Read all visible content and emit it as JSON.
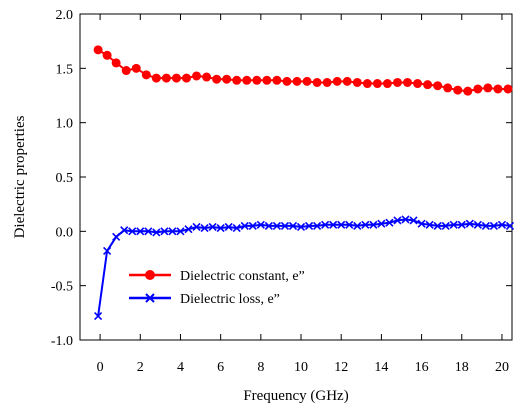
{
  "chart_data": {
    "type": "line",
    "xlabel": "Frequency (GHz)",
    "ylabel": "Dielectric properties",
    "xlim": [
      -1,
      20.5
    ],
    "ylim": [
      -1.0,
      2.0
    ],
    "x_ticks": [
      0,
      2,
      4,
      6,
      8,
      10,
      12,
      14,
      16,
      18,
      20
    ],
    "x_tick_labels": [
      "0",
      "2",
      "4",
      "6",
      "8",
      "10",
      "12",
      "14",
      "16",
      "18",
      "20"
    ],
    "y_ticks": [
      2.0,
      1.5,
      1.0,
      0.5,
      0.0,
      -0.5,
      -1.0
    ],
    "y_tick_labels": [
      "2.0",
      "1.5",
      "1.0",
      "0.5",
      "0.0",
      "-0.5",
      "-1.0"
    ],
    "grid": false,
    "legend_position": "lower-left",
    "series": [
      {
        "name": "Dielectric constant, e”",
        "color": "#ff0000",
        "marker": "circle",
        "x": [
          -0.1,
          0.35,
          0.8,
          1.3,
          1.8,
          2.3,
          2.8,
          3.3,
          3.8,
          4.3,
          4.8,
          5.3,
          5.8,
          6.3,
          6.8,
          7.3,
          7.8,
          8.3,
          8.8,
          9.3,
          9.8,
          10.3,
          10.8,
          11.3,
          11.8,
          12.3,
          12.8,
          13.3,
          13.8,
          14.3,
          14.8,
          15.3,
          15.8,
          16.3,
          16.8,
          17.3,
          17.8,
          18.3,
          18.8,
          19.3,
          19.8,
          20.3
        ],
        "y": [
          1.67,
          1.62,
          1.55,
          1.48,
          1.5,
          1.44,
          1.41,
          1.41,
          1.41,
          1.41,
          1.43,
          1.42,
          1.4,
          1.4,
          1.39,
          1.39,
          1.39,
          1.39,
          1.39,
          1.38,
          1.38,
          1.38,
          1.37,
          1.37,
          1.38,
          1.38,
          1.37,
          1.36,
          1.36,
          1.36,
          1.37,
          1.37,
          1.36,
          1.35,
          1.34,
          1.32,
          1.3,
          1.29,
          1.31,
          1.32,
          1.31,
          1.31
        ]
      },
      {
        "name": "Dielectric loss, e”",
        "color": "#0000ff",
        "marker": "x",
        "x": [
          -0.1,
          0.35,
          0.8,
          1.2,
          1.6,
          2.0,
          2.4,
          2.8,
          3.2,
          3.6,
          4.0,
          4.4,
          4.8,
          5.2,
          5.6,
          6.0,
          6.4,
          6.8,
          7.2,
          7.6,
          8.0,
          8.4,
          8.8,
          9.2,
          9.6,
          10.0,
          10.4,
          10.8,
          11.2,
          11.6,
          12.0,
          12.4,
          12.8,
          13.2,
          13.6,
          14.0,
          14.4,
          14.8,
          15.2,
          15.6,
          16.0,
          16.4,
          16.8,
          17.2,
          17.6,
          18.0,
          18.4,
          18.8,
          19.2,
          19.6,
          20.0,
          20.4
        ],
        "y": [
          -0.78,
          -0.18,
          -0.05,
          0.01,
          0.0,
          0.0,
          0.0,
          -0.01,
          0.0,
          0.0,
          0.0,
          0.02,
          0.04,
          0.03,
          0.04,
          0.03,
          0.04,
          0.03,
          0.05,
          0.05,
          0.06,
          0.05,
          0.05,
          0.05,
          0.05,
          0.04,
          0.05,
          0.05,
          0.06,
          0.06,
          0.06,
          0.06,
          0.05,
          0.06,
          0.06,
          0.07,
          0.08,
          0.1,
          0.11,
          0.1,
          0.07,
          0.06,
          0.05,
          0.05,
          0.06,
          0.06,
          0.07,
          0.06,
          0.05,
          0.05,
          0.06,
          0.05
        ]
      }
    ]
  }
}
